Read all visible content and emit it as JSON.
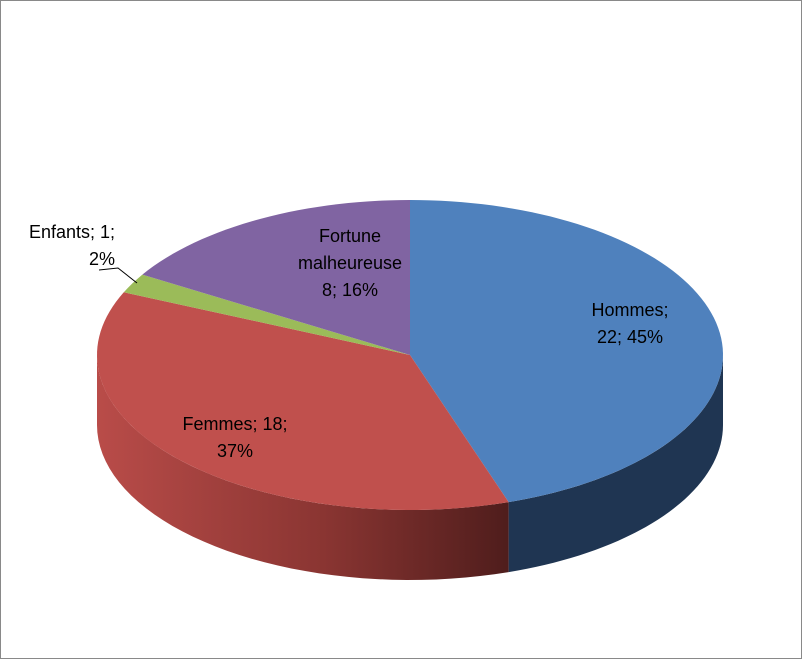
{
  "chart_data": {
    "type": "pie3d",
    "categories": [
      "Hommes",
      "Femmes",
      "Enfants",
      "Fortune malheureuse"
    ],
    "values": [
      22,
      18,
      1,
      8
    ],
    "colors": [
      "#4f81bd",
      "#c0504d",
      "#9bbb59",
      "#8064a2"
    ],
    "side_colors": [
      "#1f3552",
      "#7a2f2d",
      "#5f7536",
      "#4d3c63"
    ],
    "data_labels": [
      [
        "Hommes;",
        "22; 45%"
      ],
      [
        "Femmes; 18;",
        "37%"
      ],
      [
        "Enfants; 1;",
        "2%"
      ],
      [
        "Fortune",
        "malheureuse",
        "8; 16%"
      ]
    ]
  }
}
